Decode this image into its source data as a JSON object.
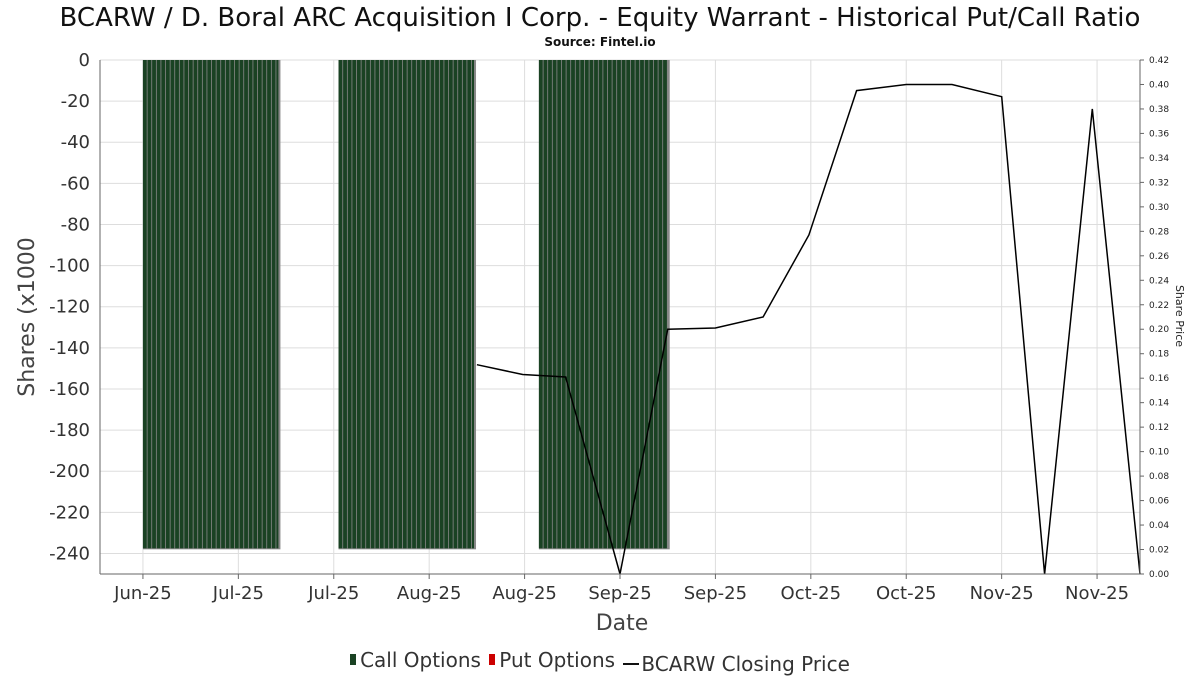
{
  "title": "BCARW / D. Boral ARC Acquisition I Corp. - Equity Warrant - Historical Put/Call Ratio",
  "subtitle": "Source: Fintel.io",
  "colors": {
    "call": "#1a4223",
    "call_edge": "#888888",
    "put": "#cc0000",
    "price": "#000000",
    "grid": "#dddddd"
  },
  "legend": {
    "call": "Call Options",
    "put": "Put Options",
    "price": "BCARW Closing Price"
  },
  "chart_data": {
    "type": "bar",
    "title": "BCARW / D. Boral ARC Acquisition I Corp. - Equity Warrant - Historical Put/Call Ratio",
    "subtitle": "Source: Fintel.io",
    "xlabel": "Date",
    "ylabel": "Shares (x1000",
    "y2label": "Share Price",
    "ylim": [
      -250,
      0
    ],
    "y2lim": [
      0,
      0.42
    ],
    "yticks": [
      0,
      -20,
      -40,
      -60,
      -80,
      -100,
      -120,
      -140,
      -160,
      -180,
      -200,
      -220,
      -240
    ],
    "y2ticks": [
      "0.42",
      "0.40",
      "0.38",
      "0.36",
      "0.34",
      "0.32",
      "0.30",
      "0.28",
      "0.26",
      "0.24",
      "0.22",
      "0.20",
      "0.18",
      "0.16",
      "0.14",
      "0.12",
      "0.10",
      "0.08",
      "0.06",
      "0.04",
      "0.02",
      "0.00"
    ],
    "xticks": [
      "Jun-25",
      "Jul-25",
      "Jul-25",
      "Aug-25",
      "Aug-25",
      "Sep-25",
      "Sep-25",
      "Oct-25",
      "Oct-25",
      "Nov-25",
      "Nov-25"
    ],
    "x_range": [
      -0.45,
      10.45
    ],
    "legend_position": "bottom",
    "grid": true,
    "series": [
      {
        "name": "Call Options",
        "kind": "bar",
        "segments": [
          {
            "x_start": 0.0,
            "x_end": 1.42,
            "value": -238
          },
          {
            "x_start": 2.05,
            "x_end": 3.47,
            "value": -238
          },
          {
            "x_start": 4.15,
            "x_end": 5.5,
            "value": -238
          }
        ]
      },
      {
        "name": "BCARW Closing Price",
        "kind": "line",
        "axis": "right",
        "x": [
          3.5,
          3.98,
          4.43,
          5.0,
          5.5,
          6.0,
          6.5,
          6.98,
          7.48,
          8.0,
          8.48,
          9.0,
          9.45,
          9.95,
          10.45
        ],
        "y": [
          0.171,
          0.163,
          0.161,
          0.0,
          0.2,
          0.201,
          0.21,
          0.277,
          0.395,
          0.4,
          0.4,
          0.39,
          0.0,
          0.38,
          0.0
        ]
      }
    ]
  }
}
